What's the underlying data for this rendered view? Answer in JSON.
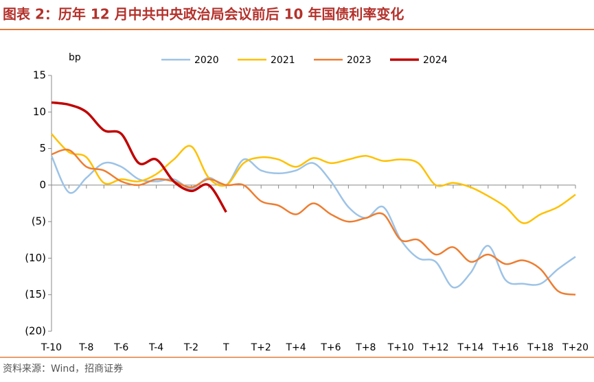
{
  "chart_data": {
    "type": "line",
    "title": "图表 2：历年 12 月中共中央政治局会议前后 10 年国债利率变化",
    "y_label": "bp",
    "source": "资料来源：Wind，招商证券",
    "categories": [
      "T-10",
      null,
      "T-8",
      null,
      "T-6",
      null,
      "T-4",
      null,
      "T-2",
      null,
      "T",
      null,
      "T+2",
      null,
      "T+4",
      null,
      "T+6",
      null,
      "T+8",
      null,
      "T+10",
      null,
      "T+12",
      null,
      "T+14",
      null,
      "T+16",
      null,
      "T+18",
      null,
      "T+20"
    ],
    "series": [
      {
        "name": "2020",
        "color": "#9dc3e6",
        "values": [
          4,
          -1,
          1,
          3,
          2.5,
          0.8,
          0.5,
          0.8,
          -0.5,
          1,
          0,
          3.5,
          2,
          1.6,
          2,
          3,
          0.5,
          -3,
          -4.5,
          -3,
          -7.5,
          -10,
          -10.5,
          -14,
          -12,
          -8.3,
          -13,
          -13.5,
          -13.5,
          -11.5,
          -9.8
        ]
      },
      {
        "name": "2021",
        "color": "#ffc000",
        "values": [
          7,
          4.5,
          3.8,
          0.3,
          0.8,
          0.5,
          1.5,
          3.5,
          5.3,
          1,
          0,
          3,
          3.8,
          3.5,
          2.5,
          3.7,
          3,
          3.5,
          4,
          3.3,
          3.5,
          3,
          0,
          0.3,
          -0.3,
          -1.5,
          -3,
          -5.2,
          -4,
          -3,
          -1.3
        ]
      },
      {
        "name": "2023",
        "color": "#ed7d31",
        "values": [
          4.2,
          4.8,
          2.5,
          2,
          0.5,
          0,
          0.8,
          0.5,
          -0.3,
          0.8,
          0,
          0,
          -2.2,
          -2.8,
          -4,
          -2.5,
          -4,
          -5,
          -4.5,
          -4,
          -7.5,
          -7.5,
          -9.5,
          -8.5,
          -10.5,
          -9.5,
          -10.8,
          -10.3,
          -11.5,
          -14.5,
          -15
        ]
      },
      {
        "name": "2024",
        "color": "#c00000",
        "values": [
          11.3,
          11,
          10,
          7.5,
          7,
          3,
          3.5,
          0.5,
          -0.8,
          0,
          -3.7,
          null,
          null,
          null,
          null,
          null,
          null,
          null,
          null,
          null,
          null,
          null,
          null,
          null,
          null,
          null,
          null,
          null,
          null,
          null,
          null
        ]
      }
    ],
    "ylim": [
      -20,
      15
    ],
    "yticks": [
      15,
      10,
      5,
      0,
      {
        "value": -5,
        "label": "(5)"
      },
      {
        "value": -10,
        "label": "(10)"
      },
      {
        "value": -15,
        "label": "(15)"
      },
      {
        "value": -20,
        "label": "(20)"
      }
    ],
    "grid": false,
    "legend": "top"
  }
}
